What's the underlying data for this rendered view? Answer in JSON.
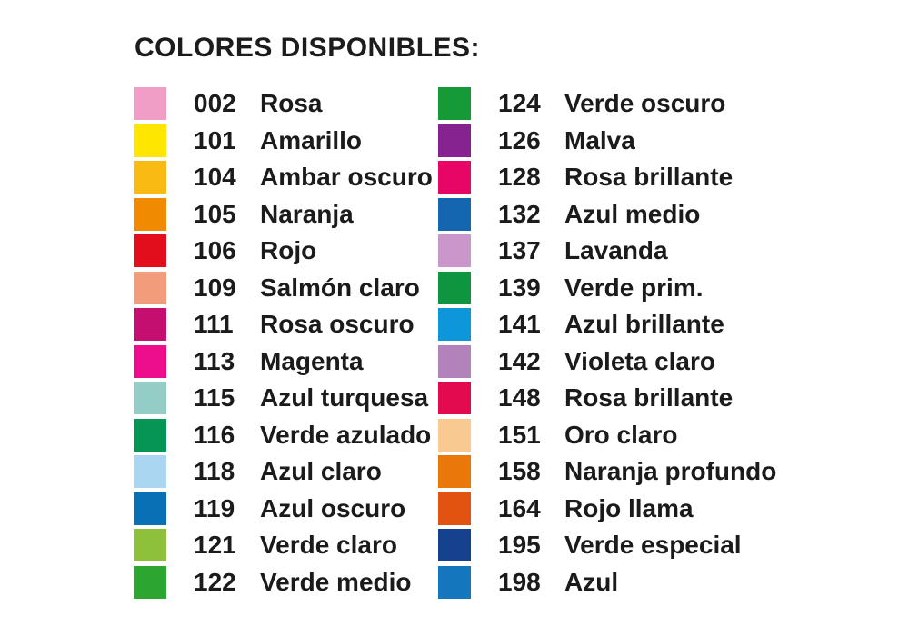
{
  "title": "COLORES DISPONIBLES:",
  "palette": {
    "columns": [
      {
        "side": "left",
        "items": [
          {
            "code": "002",
            "name": "Rosa",
            "color": "#F09EC6"
          },
          {
            "code": "101",
            "name": "Amarillo",
            "color": "#FFE600"
          },
          {
            "code": "104",
            "name": "Ambar oscuro",
            "color": "#F9BA14"
          },
          {
            "code": "105",
            "name": "Naranja",
            "color": "#F08A00"
          },
          {
            "code": "106",
            "name": "Rojo",
            "color": "#E30E1B"
          },
          {
            "code": "109",
            "name": "Salmón claro",
            "color": "#F29C7C"
          },
          {
            "code": "111",
            "name": "Rosa oscuro",
            "color": "#C40E70"
          },
          {
            "code": "113",
            "name": "Magenta",
            "color": "#EC0E8D"
          },
          {
            "code": "115",
            "name": "Azul turquesa",
            "color": "#93CDC5"
          },
          {
            "code": "116",
            "name": "Verde azulado",
            "color": "#079556"
          },
          {
            "code": "118",
            "name": "Azul claro",
            "color": "#AAD6F2"
          },
          {
            "code": "119",
            "name": "Azul oscuro",
            "color": "#0A70B6"
          },
          {
            "code": "121",
            "name": "Verde claro",
            "color": "#8FC03C"
          },
          {
            "code": "122",
            "name": "Verde medio",
            "color": "#2CA630"
          }
        ]
      },
      {
        "side": "right",
        "items": [
          {
            "code": "124",
            "name": "Verde oscuro",
            "color": "#169A38"
          },
          {
            "code": "126",
            "name": "Malva",
            "color": "#862390"
          },
          {
            "code": "128",
            "name": "Rosa brillante",
            "color": "#E70566"
          },
          {
            "code": "132",
            "name": "Azul medio",
            "color": "#1566B1"
          },
          {
            "code": "137",
            "name": "Lavanda",
            "color": "#CB97CA"
          },
          {
            "code": "139",
            "name": "Verde prim.",
            "color": "#0D9540"
          },
          {
            "code": "141",
            "name": "Azul brillante",
            "color": "#0E96DA"
          },
          {
            "code": "142",
            "name": "Violeta claro",
            "color": "#B282BA"
          },
          {
            "code": "148",
            "name": "Rosa brillante",
            "color": "#E40A50"
          },
          {
            "code": "151",
            "name": "Oro claro",
            "color": "#F8C991"
          },
          {
            "code": "158",
            "name": "Naranja profundo",
            "color": "#EA7709"
          },
          {
            "code": "164",
            "name": "Rojo llama",
            "color": "#E25211"
          },
          {
            "code": "195",
            "name": "Verde especial",
            "color": "#15418E"
          },
          {
            "code": "198",
            "name": "Azul",
            "color": "#1476BD"
          }
        ]
      }
    ]
  }
}
